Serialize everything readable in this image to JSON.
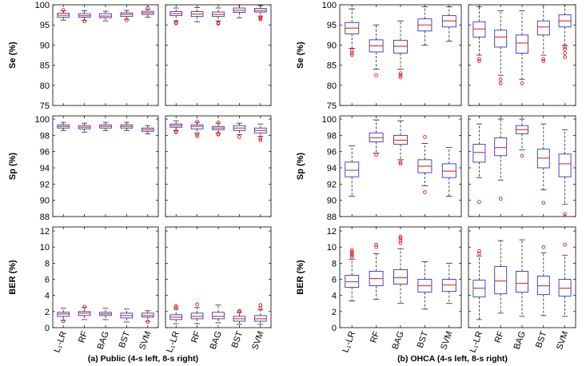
{
  "chart_data": [
    {
      "type": "boxplot",
      "caption": "(a) Public (4-s left, 8-s right)",
      "categories": [
        "L₁-LR",
        "RF",
        "BAG",
        "BST",
        "SVM"
      ],
      "rows": [
        {
          "ylabel": "Se (%)",
          "ylim": [
            75,
            100
          ],
          "yticks": [
            75,
            80,
            85,
            90,
            95,
            100
          ],
          "panels": [
            {
              "boxes": [
                {
                  "min": 96.2,
                  "q1": 96.9,
                  "median": 97.4,
                  "q3": 97.9,
                  "max": 98.5,
                  "outliers": [
                    98.7
                  ]
                },
                {
                  "min": 96.1,
                  "q1": 96.9,
                  "median": 97.3,
                  "q3": 97.8,
                  "max": 98.5,
                  "outliers": [
                    95.9
                  ]
                },
                {
                  "min": 96.0,
                  "q1": 96.8,
                  "median": 97.2,
                  "q3": 97.8,
                  "max": 98.4,
                  "outliers": []
                },
                {
                  "min": 96.4,
                  "q1": 97.1,
                  "median": 97.6,
                  "q3": 98.0,
                  "max": 98.6,
                  "outliers": [
                    96.2
                  ]
                },
                {
                  "min": 96.9,
                  "q1": 97.6,
                  "median": 98.0,
                  "q3": 98.4,
                  "max": 98.9,
                  "outliers": [
                    99.2
                  ]
                }
              ]
            },
            {
              "boxes": [
                {
                  "min": 96.0,
                  "q1": 97.3,
                  "median": 97.8,
                  "q3": 98.3,
                  "max": 99.2,
                  "outliers": [
                    95.6,
                    95.4
                  ]
                },
                {
                  "min": 95.8,
                  "q1": 97.1,
                  "median": 97.7,
                  "q3": 98.3,
                  "max": 99.3,
                  "outliers": []
                },
                {
                  "min": 96.0,
                  "q1": 97.1,
                  "median": 97.6,
                  "q3": 98.2,
                  "max": 99.2,
                  "outliers": [
                    95.5,
                    95.3
                  ]
                },
                {
                  "min": 96.8,
                  "q1": 98.1,
                  "median": 98.6,
                  "q3": 99.2,
                  "max": 100.0,
                  "outliers": []
                },
                {
                  "min": 97.2,
                  "q1": 98.2,
                  "median": 98.6,
                  "q3": 99.1,
                  "max": 99.8,
                  "outliers": [
                    96.9,
                    96.6,
                    96.4
                  ]
                }
              ]
            }
          ]
        },
        {
          "ylabel": "Sp (%)",
          "ylim": [
            88,
            100.4
          ],
          "yticks": [
            88,
            90,
            92,
            94,
            96,
            98,
            100
          ],
          "panels": [
            {
              "boxes": [
                {
                  "min": 98.6,
                  "q1": 98.9,
                  "median": 99.1,
                  "q3": 99.3,
                  "max": 99.6,
                  "outliers": []
                },
                {
                  "min": 98.4,
                  "q1": 98.8,
                  "median": 99.0,
                  "q3": 99.2,
                  "max": 99.5,
                  "outliers": []
                },
                {
                  "min": 98.6,
                  "q1": 98.9,
                  "median": 99.1,
                  "q3": 99.3,
                  "max": 99.6,
                  "outliers": []
                },
                {
                  "min": 98.6,
                  "q1": 98.9,
                  "median": 99.1,
                  "q3": 99.3,
                  "max": 99.6,
                  "outliers": []
                },
                {
                  "min": 98.2,
                  "q1": 98.5,
                  "median": 98.7,
                  "q3": 98.9,
                  "max": 99.2,
                  "outliers": []
                }
              ]
            },
            {
              "boxes": [
                {
                  "min": 98.6,
                  "q1": 99.0,
                  "median": 99.2,
                  "q3": 99.4,
                  "max": 99.8,
                  "outliers": [
                    98.5,
                    98.4
                  ]
                },
                {
                  "min": 98.3,
                  "q1": 98.8,
                  "median": 99.1,
                  "q3": 99.3,
                  "max": 99.6,
                  "outliers": [
                    99.7,
                    98.1,
                    97.9
                  ]
                },
                {
                  "min": 98.3,
                  "q1": 98.7,
                  "median": 98.9,
                  "q3": 99.1,
                  "max": 99.5,
                  "outliers": [
                    99.6,
                    98.2,
                    98.1
                  ]
                },
                {
                  "min": 98.1,
                  "q1": 98.6,
                  "median": 98.9,
                  "q3": 99.2,
                  "max": 99.5,
                  "outliers": [
                    97.8
                  ]
                },
                {
                  "min": 97.9,
                  "q1": 98.3,
                  "median": 98.6,
                  "q3": 98.9,
                  "max": 99.4,
                  "outliers": [
                    97.6,
                    97.4
                  ]
                }
              ]
            }
          ]
        },
        {
          "ylabel": "BER (%)",
          "ylim": [
            0,
            12.5
          ],
          "yticks": [
            0,
            2,
            4,
            6,
            8,
            10,
            12
          ],
          "panels": [
            {
              "boxes": [
                {
                  "min": 0.9,
                  "q1": 1.4,
                  "median": 1.7,
                  "q3": 1.9,
                  "max": 2.4,
                  "outliers": [
                    0.8
                  ]
                },
                {
                  "min": 1.0,
                  "q1": 1.5,
                  "median": 1.8,
                  "q3": 2.0,
                  "max": 2.5,
                  "outliers": [
                    2.6
                  ]
                },
                {
                  "min": 1.0,
                  "q1": 1.5,
                  "median": 1.7,
                  "q3": 1.9,
                  "max": 2.4,
                  "outliers": []
                },
                {
                  "min": 0.7,
                  "q1": 1.2,
                  "median": 1.5,
                  "q3": 1.8,
                  "max": 2.3,
                  "outliers": []
                },
                {
                  "min": 0.8,
                  "q1": 1.3,
                  "median": 1.5,
                  "q3": 1.8,
                  "max": 2.1,
                  "outliers": [
                    0.7
                  ]
                }
              ]
            },
            {
              "boxes": [
                {
                  "min": 0.5,
                  "q1": 1.0,
                  "median": 1.3,
                  "q3": 1.6,
                  "max": 2.3,
                  "outliers": [
                    2.5,
                    2.7
                  ]
                },
                {
                  "min": 0.5,
                  "q1": 1.1,
                  "median": 1.4,
                  "q3": 1.8,
                  "max": 2.5,
                  "outliers": [
                    2.9
                  ]
                },
                {
                  "min": 0.6,
                  "q1": 1.1,
                  "median": 1.4,
                  "q3": 1.9,
                  "max": 2.8,
                  "outliers": []
                },
                {
                  "min": 0.4,
                  "q1": 0.8,
                  "median": 1.1,
                  "q3": 1.4,
                  "max": 1.9,
                  "outliers": [
                    2.1,
                    1.95
                  ]
                },
                {
                  "min": 0.4,
                  "q1": 0.8,
                  "median": 1.1,
                  "q3": 1.5,
                  "max": 2.2,
                  "outliers": [
                    2.4,
                    2.8
                  ]
                }
              ]
            }
          ]
        }
      ]
    },
    {
      "type": "boxplot",
      "caption": "(b) OHCA (4-s left, 8-s right)",
      "categories": [
        "L₁-LR",
        "RF",
        "BAG",
        "BST",
        "SVM"
      ],
      "rows": [
        {
          "ylabel": "Se (%)",
          "ylim": [
            75,
            100
          ],
          "yticks": [
            75,
            80,
            85,
            90,
            95,
            100
          ],
          "panels": [
            {
              "boxes": [
                {
                  "min": 89.2,
                  "q1": 92.8,
                  "median": 94.2,
                  "q3": 95.6,
                  "max": 99.0,
                  "outliers": [
                    88.6,
                    88.0,
                    87.5
                  ]
                },
                {
                  "min": 84.0,
                  "q1": 88.3,
                  "median": 89.8,
                  "q3": 91.3,
                  "max": 95.0,
                  "outliers": [
                    82.5
                  ]
                },
                {
                  "min": 84.0,
                  "q1": 88.0,
                  "median": 89.7,
                  "q3": 91.2,
                  "max": 96.0,
                  "outliers": [
                    83.0,
                    82.5,
                    82.0
                  ]
                },
                {
                  "min": 90.0,
                  "q1": 93.5,
                  "median": 95.0,
                  "q3": 96.5,
                  "max": 99.5,
                  "outliers": []
                },
                {
                  "min": 91.0,
                  "q1": 94.5,
                  "median": 96.0,
                  "q3": 97.3,
                  "max": 99.5,
                  "outliers": []
                }
              ]
            },
            {
              "boxes": [
                {
                  "min": 87.5,
                  "q1": 92.0,
                  "median": 94.0,
                  "q3": 95.8,
                  "max": 99.5,
                  "outliers": [
                    86.5,
                    86.0
                  ]
                },
                {
                  "min": 82.5,
                  "q1": 89.5,
                  "median": 92.0,
                  "q3": 93.7,
                  "max": 98.5,
                  "outliers": [
                    81.5,
                    80.5
                  ]
                },
                {
                  "min": 81.5,
                  "q1": 88.0,
                  "median": 90.5,
                  "q3": 92.5,
                  "max": 98.5,
                  "outliers": [
                    80.5
                  ]
                },
                {
                  "min": 87.5,
                  "q1": 92.5,
                  "median": 94.5,
                  "q3": 96.0,
                  "max": 100.0,
                  "outliers": [
                    86.5,
                    86.0
                  ]
                },
                {
                  "min": 90.0,
                  "q1": 94.5,
                  "median": 96.0,
                  "q3": 97.5,
                  "max": 100.0,
                  "outliers": [
                    89.5,
                    89.0,
                    88.0,
                    87.0
                  ]
                }
              ]
            }
          ]
        },
        {
          "ylabel": "Sp (%)",
          "ylim": [
            88,
            100.4
          ],
          "yticks": [
            88,
            90,
            92,
            94,
            96,
            98,
            100
          ],
          "panels": [
            {
              "boxes": [
                {
                  "min": 90.5,
                  "q1": 92.9,
                  "median": 93.7,
                  "q3": 94.7,
                  "max": 96.7,
                  "outliers": []
                },
                {
                  "min": 95.8,
                  "q1": 97.2,
                  "median": 97.7,
                  "q3": 98.3,
                  "max": 99.9,
                  "outliers": [
                    95.6
                  ]
                },
                {
                  "min": 95.0,
                  "q1": 96.9,
                  "median": 97.4,
                  "q3": 98.0,
                  "max": 99.8,
                  "outliers": [
                    94.7,
                    94.5
                  ]
                },
                {
                  "min": 91.8,
                  "q1": 93.4,
                  "median": 94.2,
                  "q3": 95.0,
                  "max": 97.0,
                  "outliers": [
                    97.8,
                    91.0
                  ]
                },
                {
                  "min": 90.5,
                  "q1": 92.8,
                  "median": 93.6,
                  "q3": 94.5,
                  "max": 96.5,
                  "outliers": []
                }
              ]
            },
            {
              "boxes": [
                {
                  "min": 92.8,
                  "q1": 94.7,
                  "median": 95.9,
                  "q3": 96.9,
                  "max": 99.4,
                  "outliers": [
                    89.8
                  ]
                },
                {
                  "min": 92.5,
                  "q1": 95.5,
                  "median": 96.5,
                  "q3": 97.7,
                  "max": 100.0,
                  "outliers": [
                    90.2
                  ]
                },
                {
                  "min": 96.2,
                  "q1": 98.2,
                  "median": 98.7,
                  "q3": 99.2,
                  "max": 100.0,
                  "outliers": [
                    95.5
                  ]
                },
                {
                  "min": 91.3,
                  "q1": 94.0,
                  "median": 95.2,
                  "q3": 96.3,
                  "max": 99.4,
                  "outliers": [
                    89.7
                  ]
                },
                {
                  "min": 89.5,
                  "q1": 92.9,
                  "median": 94.5,
                  "q3": 95.7,
                  "max": 98.7,
                  "outliers": [
                    88.3
                  ]
                }
              ]
            }
          ]
        },
        {
          "ylabel": "BER (%)",
          "ylim": [
            0,
            12.5
          ],
          "yticks": [
            0,
            2,
            4,
            6,
            8,
            10,
            12
          ],
          "panels": [
            {
              "boxes": [
                {
                  "min": 3.3,
                  "q1": 5.0,
                  "median": 5.7,
                  "q3": 6.5,
                  "max": 8.5,
                  "outliers": [
                    8.8,
                    9.0,
                    9.2,
                    9.4,
                    9.6
                  ]
                },
                {
                  "min": 3.5,
                  "q1": 5.2,
                  "median": 6.1,
                  "q3": 7.0,
                  "max": 9.2,
                  "outliers": [
                    10.0,
                    10.3
                  ]
                },
                {
                  "min": 3.0,
                  "q1": 5.4,
                  "median": 6.2,
                  "q3": 7.2,
                  "max": 9.8,
                  "outliers": [
                    10.5,
                    10.8,
                    11.1,
                    11.3
                  ]
                },
                {
                  "min": 2.3,
                  "q1": 4.4,
                  "median": 5.2,
                  "q3": 6.0,
                  "max": 8.2,
                  "outliers": []
                },
                {
                  "min": 3.0,
                  "q1": 4.5,
                  "median": 5.3,
                  "q3": 6.0,
                  "max": 8.0,
                  "outliers": []
                }
              ]
            },
            {
              "boxes": [
                {
                  "min": 1.0,
                  "q1": 3.8,
                  "median": 4.9,
                  "q3": 5.9,
                  "max": 8.9,
                  "outliers": [
                    9.2,
                    9.5
                  ]
                },
                {
                  "min": 1.8,
                  "q1": 4.2,
                  "median": 5.8,
                  "q3": 7.6,
                  "max": 10.8,
                  "outliers": []
                },
                {
                  "min": 1.4,
                  "q1": 4.4,
                  "median": 5.5,
                  "q3": 7.0,
                  "max": 10.9,
                  "outliers": []
                },
                {
                  "min": 1.5,
                  "q1": 4.1,
                  "median": 5.2,
                  "q3": 6.4,
                  "max": 9.3,
                  "outliers": [
                    10.0
                  ]
                },
                {
                  "min": 1.4,
                  "q1": 3.9,
                  "median": 4.9,
                  "q3": 6.0,
                  "max": 9.0,
                  "outliers": [
                    10.3
                  ]
                }
              ]
            }
          ]
        }
      ]
    }
  ],
  "colors": {
    "box": "#3333cc",
    "median": "#e0402a",
    "outlier": "#e31a1c",
    "whisker": "#222222",
    "axis": "#000000",
    "grid": "#e6e6e6"
  }
}
